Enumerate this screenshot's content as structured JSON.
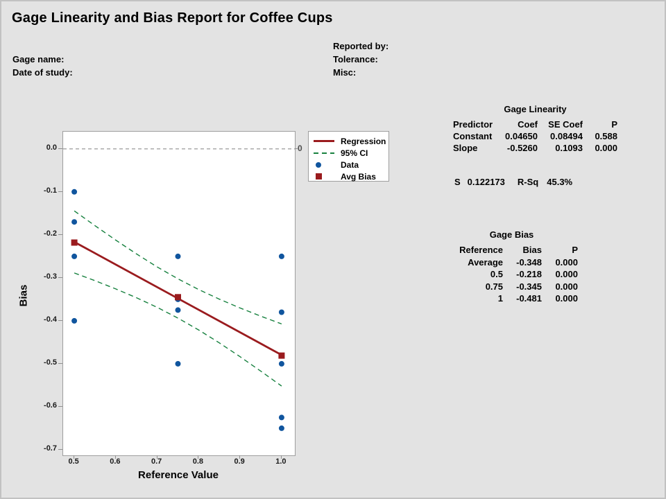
{
  "title": "Gage Linearity and Bias Report for Coffee Cups",
  "header": {
    "gage_name_label": "Gage name:",
    "date_of_study_label": "Date of study:",
    "reported_by_label": "Reported by:",
    "tolerance_label": "Tolerance:",
    "misc_label": "Misc:"
  },
  "chart_data": {
    "type": "scatter",
    "xlabel": "Reference Value",
    "ylabel": "Bias",
    "xlim": [
      0.473,
      1.032
    ],
    "ylim": [
      -0.713,
      0.04
    ],
    "grid": false,
    "legend_position": "right-of-plot",
    "x_ticks": [
      {
        "v": 0.5,
        "label": "0.5"
      },
      {
        "v": 0.6,
        "label": "0.6"
      },
      {
        "v": 0.7,
        "label": "0.7"
      },
      {
        "v": 0.8,
        "label": "0.8"
      },
      {
        "v": 0.9,
        "label": "0.9"
      },
      {
        "v": 1.0,
        "label": "1.0"
      }
    ],
    "y_ticks": [
      {
        "v": 0.0,
        "label": "0.0"
      },
      {
        "v": -0.1,
        "label": "-0.1"
      },
      {
        "v": -0.2,
        "label": "-0.2"
      },
      {
        "v": -0.3,
        "label": "-0.3"
      },
      {
        "v": -0.4,
        "label": "-0.4"
      },
      {
        "v": -0.5,
        "label": "-0.5"
      },
      {
        "v": -0.6,
        "label": "-0.6"
      },
      {
        "v": -0.7,
        "label": "-0.7"
      }
    ],
    "zero_line": {
      "value": 0,
      "label": "0"
    },
    "series": {
      "data": {
        "name": "Data",
        "points": [
          [
            0.5,
            -0.1
          ],
          [
            0.5,
            -0.17
          ],
          [
            0.5,
            -0.25
          ],
          [
            0.5,
            -0.4
          ],
          [
            0.75,
            -0.25
          ],
          [
            0.75,
            -0.35
          ],
          [
            0.75,
            -0.375
          ],
          [
            0.75,
            -0.5
          ],
          [
            1.0,
            -0.25
          ],
          [
            1.0,
            -0.38
          ],
          [
            1.0,
            -0.5
          ],
          [
            1.0,
            -0.625
          ],
          [
            1.0,
            -0.65
          ]
        ]
      },
      "avg_bias": {
        "name": "Avg Bias",
        "points": [
          [
            0.5,
            -0.218
          ],
          [
            0.75,
            -0.345
          ],
          [
            1.0,
            -0.481
          ]
        ]
      },
      "regression": {
        "name": "Regression",
        "points": [
          [
            0.5,
            -0.2165
          ],
          [
            1.0,
            -0.4795
          ]
        ]
      },
      "ci_upper": {
        "name": "95% CI upper",
        "points": [
          [
            0.5,
            -0.1443
          ],
          [
            0.55,
            -0.1788
          ],
          [
            0.6,
            -0.2124
          ],
          [
            0.65,
            -0.2445
          ],
          [
            0.7,
            -0.2747
          ],
          [
            0.75,
            -0.3023
          ],
          [
            0.8,
            -0.3273
          ],
          [
            0.85,
            -0.3497
          ],
          [
            0.9,
            -0.3702
          ],
          [
            0.95,
            -0.3893
          ],
          [
            1.0,
            -0.4073
          ]
        ]
      },
      "ci_lower": {
        "name": "95% CI lower",
        "points": [
          [
            0.5,
            -0.2887
          ],
          [
            0.55,
            -0.3067
          ],
          [
            0.6,
            -0.3258
          ],
          [
            0.65,
            -0.3463
          ],
          [
            0.7,
            -0.3687
          ],
          [
            0.75,
            -0.3937
          ],
          [
            0.8,
            -0.4213
          ],
          [
            0.85,
            -0.4515
          ],
          [
            0.9,
            -0.4836
          ],
          [
            0.95,
            -0.5172
          ],
          [
            1.0,
            -0.5517
          ]
        ]
      }
    },
    "legend": [
      {
        "label": "Regression",
        "swatch": "line"
      },
      {
        "label": "95% CI",
        "swatch": "dash"
      },
      {
        "label": "Data",
        "swatch": "dot"
      },
      {
        "label": "Avg Bias",
        "swatch": "square"
      }
    ],
    "colors": {
      "regression": "#9A1B1E",
      "ci": "#17813F",
      "data": "#10559E",
      "avg_bias": "#9A1B1E",
      "zero_line": "#8F8F8F",
      "frame": "#9E9E9E"
    }
  },
  "tables": {
    "linearity": {
      "title": "Gage Linearity",
      "headers": [
        "Predictor",
        "Coef",
        "SE Coef",
        "P"
      ],
      "rows": [
        [
          "Constant",
          "0.04650",
          "0.08494",
          "0.588"
        ],
        [
          "Slope",
          "-0.5260",
          "0.1093",
          "0.000"
        ]
      ]
    },
    "fit_stats": {
      "s_label": "S",
      "s_value": "0.122173",
      "rsq_label": "R-Sq",
      "rsq_value": "45.3%"
    },
    "bias": {
      "title": "Gage Bias",
      "headers": [
        "Reference",
        "Bias",
        "P"
      ],
      "rows": [
        [
          "Average",
          "-0.348",
          "0.000"
        ],
        [
          "0.5",
          "-0.218",
          "0.000"
        ],
        [
          "0.75",
          "-0.345",
          "0.000"
        ],
        [
          "1",
          "-0.481",
          "0.000"
        ]
      ]
    }
  },
  "colors": {
    "background": "#E3E3E3",
    "plot_background": "#FFFFFF"
  }
}
